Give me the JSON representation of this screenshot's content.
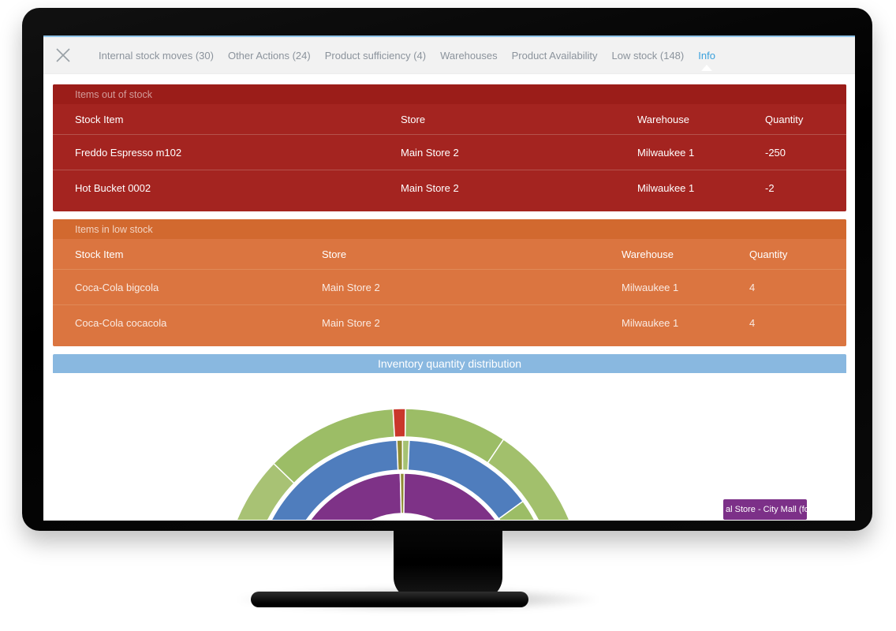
{
  "nav": {
    "tabs": [
      {
        "label": "Internal stock moves (30)",
        "active": false
      },
      {
        "label": "Other Actions (24)",
        "active": false
      },
      {
        "label": "Product sufficiency (4)",
        "active": false
      },
      {
        "label": "Warehouses",
        "active": false
      },
      {
        "label": "Product Availability",
        "active": false
      },
      {
        "label": "Low stock (148)",
        "active": false
      },
      {
        "label": "Info",
        "active": true
      }
    ]
  },
  "out_of_stock": {
    "title": "Items out of stock",
    "columns": [
      "Stock Item",
      "Store",
      "Warehouse",
      "Quantity"
    ],
    "rows": [
      {
        "item": "Freddo Espresso m102",
        "store": "Main Store 2",
        "warehouse": "Milwaukee 1",
        "quantity": "-250"
      },
      {
        "item": "Hot Bucket 0002",
        "store": "Main Store 2",
        "warehouse": "Milwaukee 1",
        "quantity": "-2"
      }
    ]
  },
  "low_stock": {
    "title": "Items in low stock",
    "columns": [
      "Stock Item",
      "Store",
      "Warehouse",
      "Quantity"
    ],
    "rows": [
      {
        "item": "Coca-Cola bigcola",
        "store": "Main Store 2",
        "warehouse": "Milwaukee 1",
        "quantity": "4"
      },
      {
        "item": "Coca-Cola cocacola",
        "store": "Main Store 2",
        "warehouse": "Milwaukee 1",
        "quantity": "4"
      }
    ]
  },
  "chart": {
    "title": "Inventory quantity distribution",
    "tooltip": {
      "text": "al Store - City Mall (for"
    },
    "chart_data": {
      "type": "sunburst",
      "title": "Inventory quantity distribution",
      "center": [
        444,
        273
      ],
      "rings": [
        {
          "name": "inner",
          "r0": 95,
          "r1": 146,
          "segments": [
            {
              "a0": -90,
              "a1": -1.4,
              "color": "#7e3287",
              "label": "purple-left"
            },
            {
              "a0": -1.4,
              "a1": 0.6,
              "color": "#8f8c33",
              "label": "olive-sliver"
            },
            {
              "a0": 0.6,
              "a1": 90,
              "color": "#7e3287",
              "label": "purple-right"
            }
          ]
        },
        {
          "name": "middle",
          "r0": 150,
          "r1": 188,
          "segments": [
            {
              "a0": -90,
              "a1": -2.4,
              "color": "#4f7dbd",
              "label": "blue-left"
            },
            {
              "a0": -2.4,
              "a1": -0.2,
              "color": "#8f8c33",
              "label": "olive-sliver"
            },
            {
              "a0": -0.2,
              "a1": 2.4,
              "color": "#a6c272",
              "label": "green-sliver"
            },
            {
              "a0": 2.4,
              "a1": 54,
              "color": "#4f7dbd",
              "label": "blue-right"
            },
            {
              "a0": 54,
              "a1": 90,
              "color": "#9cbd66",
              "label": "green-right"
            }
          ]
        },
        {
          "name": "outer",
          "r0": 192,
          "r1": 228,
          "segments": [
            {
              "a0": -90,
              "a1": -46,
              "color": "#a8c274",
              "label": "green-far-left"
            },
            {
              "a0": -46,
              "a1": -3.2,
              "color": "#9cbd66",
              "label": "green-left"
            },
            {
              "a0": -3.2,
              "a1": 0.8,
              "color": "#c9372b",
              "label": "red-sliver"
            },
            {
              "a0": 0.8,
              "a1": 34,
              "color": "#9cbd66",
              "label": "green-right-1"
            },
            {
              "a0": 34,
              "a1": 90,
              "color": "#a2c06c",
              "label": "green-right-2"
            }
          ]
        }
      ]
    }
  },
  "colors": {
    "out_of_stock_bg": "#a42420",
    "out_of_stock_header_bg": "#9b1d19",
    "low_stock_bg": "#db7540",
    "low_stock_header_bg": "#d2692f",
    "chart_header_bg": "#89b8e0",
    "active_tab": "#3aa0dc",
    "tooltip_bg": "#7c3088",
    "navbar_bg": "#f2f2f2"
  }
}
